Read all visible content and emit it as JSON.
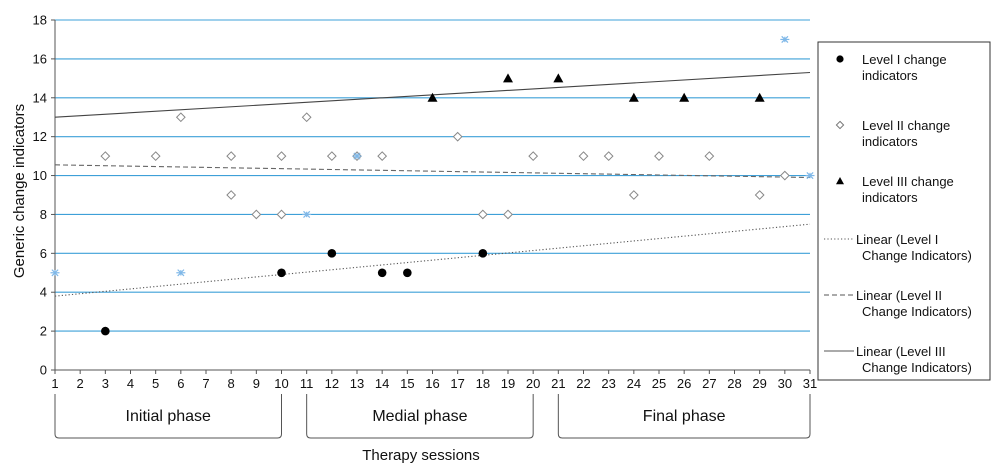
{
  "chart_data": {
    "type": "scatter",
    "xlabel": "Therapy sessions",
    "ylabel": "Generic change indicators",
    "xlim": [
      1,
      31
    ],
    "ylim": [
      0,
      18
    ],
    "x_ticks": [
      1,
      2,
      3,
      4,
      5,
      6,
      7,
      8,
      9,
      10,
      11,
      12,
      13,
      14,
      15,
      16,
      17,
      18,
      19,
      20,
      21,
      22,
      23,
      24,
      25,
      26,
      27,
      28,
      29,
      30,
      31
    ],
    "y_ticks": [
      0,
      2,
      4,
      6,
      8,
      10,
      12,
      14,
      16,
      18
    ],
    "grid": "horizontal",
    "legend_position": "right",
    "colors": {
      "grid": "#3ea0d8",
      "level1": "#000000",
      "level2": "#888888",
      "level3": "#000000",
      "combined": "#7fb8e8"
    },
    "series": [
      {
        "name": "Level I change indicators",
        "marker": "circle",
        "points": [
          [
            3,
            2
          ],
          [
            10,
            5
          ],
          [
            12,
            6
          ],
          [
            14,
            5
          ],
          [
            15,
            5
          ],
          [
            18,
            6
          ]
        ]
      },
      {
        "name": "Level II change indicators",
        "marker": "diamond",
        "points": [
          [
            3,
            11
          ],
          [
            5,
            11
          ],
          [
            6,
            13
          ],
          [
            8,
            11
          ],
          [
            8,
            9
          ],
          [
            9,
            8
          ],
          [
            10,
            8
          ],
          [
            10,
            11
          ],
          [
            11,
            13
          ],
          [
            12,
            11
          ],
          [
            13,
            11
          ],
          [
            14,
            11
          ],
          [
            17,
            12
          ],
          [
            18,
            8
          ],
          [
            19,
            8
          ],
          [
            20,
            11
          ],
          [
            22,
            11
          ],
          [
            23,
            11
          ],
          [
            24,
            9
          ],
          [
            25,
            11
          ],
          [
            27,
            11
          ],
          [
            29,
            9
          ],
          [
            30,
            10
          ]
        ]
      },
      {
        "name": "Level III change indicators",
        "marker": "triangle",
        "points": [
          [
            16,
            14
          ],
          [
            19,
            15
          ],
          [
            21,
            15
          ],
          [
            24,
            14
          ],
          [
            26,
            14
          ],
          [
            29,
            14
          ]
        ]
      },
      {
        "marker": "asterisk",
        "points": [
          [
            1,
            5
          ],
          [
            6,
            5
          ],
          [
            11,
            8
          ],
          [
            13,
            11
          ],
          [
            30,
            17
          ],
          [
            31,
            10
          ]
        ]
      }
    ],
    "trendlines": [
      {
        "name": "Linear (Level I Change Indicators)",
        "style": "dotted",
        "start": [
          1,
          3.8
        ],
        "end": [
          31,
          7.5
        ]
      },
      {
        "name": "Linear (Level II Change Indicators)",
        "style": "dashed",
        "start": [
          1,
          10.55
        ],
        "end": [
          31,
          9.9
        ]
      },
      {
        "name": "Linear (Level III Change Indicators)",
        "style": "solid",
        "start": [
          1,
          13.0
        ],
        "end": [
          31,
          15.3
        ]
      }
    ],
    "phases": [
      {
        "label": "Initial phase",
        "from": 1,
        "to": 10
      },
      {
        "label": "Medial phase",
        "from": 11,
        "to": 20
      },
      {
        "label": "Final phase",
        "from": 21,
        "to": 31
      }
    ],
    "legend": [
      {
        "key": "level1",
        "symbol": "circle",
        "lines": [
          "Level I change",
          "indicators"
        ]
      },
      {
        "key": "level2",
        "symbol": "diamond",
        "lines": [
          "Level II change",
          "indicators"
        ]
      },
      {
        "key": "level3",
        "symbol": "triangle",
        "lines": [
          "Level III change",
          "indicators"
        ]
      },
      {
        "key": "trend1",
        "symbol": "dotted",
        "lines": [
          "Linear (Level I",
          "Change Indicators)"
        ]
      },
      {
        "key": "trend2",
        "symbol": "dashed",
        "lines": [
          "Linear (Level II",
          "Change Indicators)"
        ]
      },
      {
        "key": "trend3",
        "symbol": "solid",
        "lines": [
          "Linear (Level III",
          "Change Indicators)"
        ]
      }
    ]
  }
}
